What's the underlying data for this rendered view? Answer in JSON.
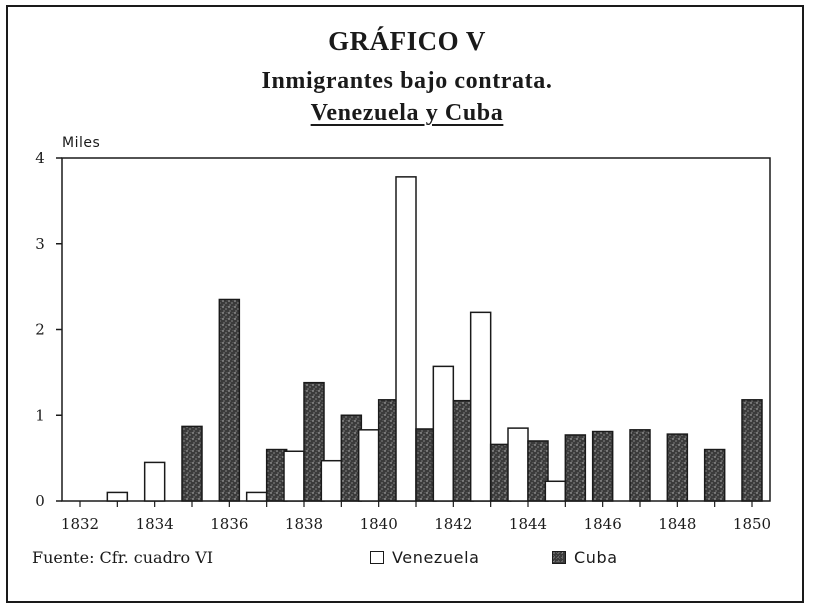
{
  "title": "GRÁFICO V",
  "subtitle_line1": "Inmigrantes bajo contrata.",
  "subtitle_line2": "Venezuela y Cuba",
  "source_note": "Fuente: Cfr. cuadro VI",
  "colors": {
    "venezuela_fill": "#ffffff",
    "cuba_fill": "#3a3a3a",
    "ink": "#1a1a1a"
  },
  "chart_data": {
    "type": "bar",
    "title": "Inmigrantes bajo contrata. Venezuela y Cuba",
    "ylabel": "Miles",
    "xlabel": "",
    "ylim": [
      0,
      4
    ],
    "yticks": [
      0,
      1,
      2,
      3,
      4
    ],
    "xticks": [
      1832,
      1834,
      1836,
      1838,
      1840,
      1842,
      1844,
      1846,
      1848,
      1850
    ],
    "categories": [
      1832,
      1833,
      1834,
      1835,
      1836,
      1837,
      1838,
      1839,
      1840,
      1841,
      1842,
      1843,
      1844,
      1845,
      1846,
      1847,
      1848,
      1849,
      1850
    ],
    "legend": "bottom",
    "series": [
      {
        "name": "Venezuela",
        "values": [
          0,
          0.1,
          0.45,
          0,
          0,
          0.1,
          0.58,
          0.47,
          0.83,
          3.78,
          1.57,
          2.2,
          0.85,
          0.23,
          0,
          0,
          0,
          0,
          0
        ]
      },
      {
        "name": "Cuba",
        "values": [
          0,
          0,
          0,
          0.87,
          2.35,
          0.6,
          1.38,
          1.0,
          1.18,
          0.84,
          1.17,
          0.66,
          0.7,
          0.77,
          0.81,
          0.83,
          0.78,
          0.6,
          1.18
        ]
      }
    ]
  }
}
